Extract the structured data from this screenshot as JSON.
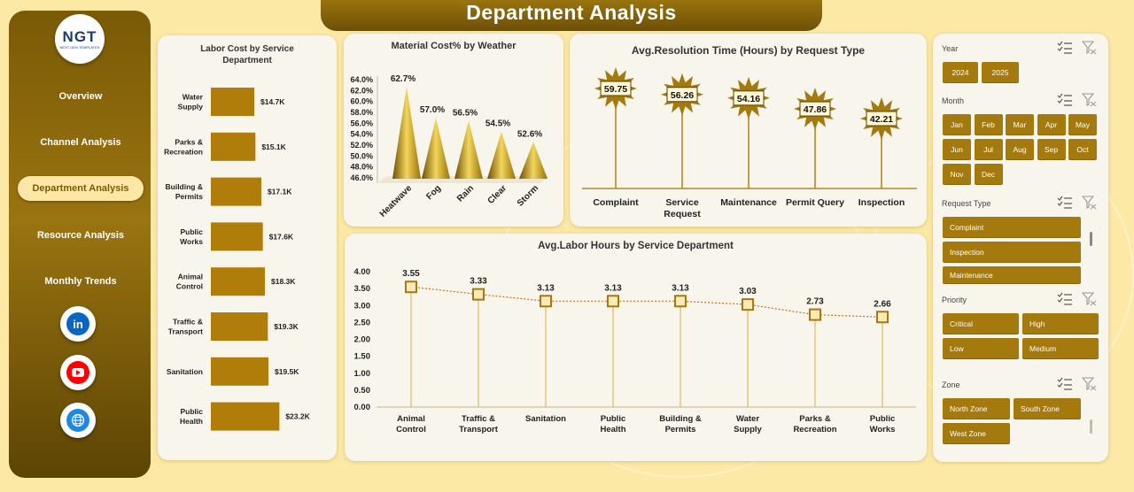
{
  "page": {
    "title": "Department Analysis"
  },
  "logo": {
    "text": "NGT",
    "subtext": "NEXT GEN TEMPLATES"
  },
  "nav": {
    "items": [
      {
        "label": "Overview",
        "active": false
      },
      {
        "label": "Channel Analysis",
        "active": false
      },
      {
        "label": "Department Analysis",
        "active": true
      },
      {
        "label": "Resource Analysis",
        "active": false
      },
      {
        "label": "Monthly Trends",
        "active": false
      }
    ],
    "social": [
      {
        "name": "linkedin-icon",
        "glyph": "in",
        "color": "#0a66c2"
      },
      {
        "name": "youtube-icon",
        "glyph": "▶",
        "color": "#ff0000"
      },
      {
        "name": "globe-icon",
        "glyph": "🌐",
        "color": "#1e88e5"
      }
    ]
  },
  "colors": {
    "gold": "#a47a0e",
    "gold_dark": "#6d5006",
    "bar": "#b07c0a",
    "cream": "#f8f5ec",
    "background": "#fce9a6"
  },
  "chart_data": [
    {
      "type": "bar",
      "orientation": "horizontal",
      "title": "Labor Cost by Service Department",
      "categories": [
        "Water Supply",
        "Parks & Recreation",
        "Building & Permits",
        "Public Works",
        "Animal Control",
        "Traffic & Transport",
        "Sanitation",
        "Public Health"
      ],
      "values": [
        14.7,
        15.1,
        17.1,
        17.6,
        18.3,
        19.3,
        19.5,
        23.2
      ],
      "data_labels": [
        "$14.7K",
        "$15.1K",
        "$17.1K",
        "$17.6K",
        "$18.3K",
        "$19.3K",
        "$19.5K",
        "$23.2K"
      ],
      "unit": "$K"
    },
    {
      "type": "bar",
      "style": "cone",
      "title": "Material Cost% by Weather",
      "categories": [
        "Heatwave",
        "Fog",
        "Rain",
        "Clear",
        "Storm"
      ],
      "values": [
        62.7,
        57.0,
        56.5,
        54.5,
        52.6
      ],
      "data_labels": [
        "62.7%",
        "57.0%",
        "56.5%",
        "54.5%",
        "52.6%"
      ],
      "yticks": [
        "64.0%",
        "62.0%",
        "60.0%",
        "58.0%",
        "56.0%",
        "54.0%",
        "52.0%",
        "50.0%",
        "48.0%",
        "46.0%"
      ],
      "ylim": [
        46,
        64
      ]
    },
    {
      "type": "lollipop",
      "title": "Avg.Resolution Time (Hours) by Request Type",
      "categories": [
        "Complaint",
        "Service Request",
        "Maintenance",
        "Permit Query",
        "Inspection"
      ],
      "values": [
        59.75,
        56.26,
        54.16,
        47.86,
        42.21
      ],
      "data_labels": [
        "59.75",
        "56.26",
        "54.16",
        "47.86",
        "42.21"
      ]
    },
    {
      "type": "line",
      "title": "Avg.Labor Hours by Service Department",
      "categories": [
        "Animal Control",
        "Traffic & Transport",
        "Sanitation",
        "Public Health",
        "Building & Permits",
        "Water Supply",
        "Parks & Recreation",
        "Public Works"
      ],
      "values": [
        3.55,
        3.33,
        3.13,
        3.13,
        3.13,
        3.03,
        2.73,
        2.66
      ],
      "data_labels": [
        "3.55",
        "3.33",
        "3.13",
        "3.13",
        "3.13",
        "3.03",
        "2.73",
        "2.66"
      ],
      "yticks": [
        "4.00",
        "3.50",
        "3.00",
        "2.50",
        "2.00",
        "1.50",
        "1.00",
        "0.50",
        "0.00"
      ],
      "ylim": [
        0,
        4
      ]
    }
  ],
  "slicers": {
    "year": {
      "header": "Year",
      "options": [
        "2024",
        "2025"
      ]
    },
    "month": {
      "header": "Month",
      "options": [
        "Jan",
        "Feb",
        "Mar",
        "Apr",
        "May",
        "Jun",
        "Jul",
        "Aug",
        "Sep",
        "Oct",
        "Nov",
        "Dec"
      ]
    },
    "request_type": {
      "header": "Request Type",
      "options": [
        "Complaint",
        "Inspection",
        "Maintenance"
      ]
    },
    "priority": {
      "header": "Priority",
      "options": [
        "Critical",
        "High",
        "Low",
        "Medium"
      ]
    },
    "zone": {
      "header": "Zone",
      "options": [
        "North Zone",
        "South Zone",
        "West Zone"
      ]
    }
  }
}
